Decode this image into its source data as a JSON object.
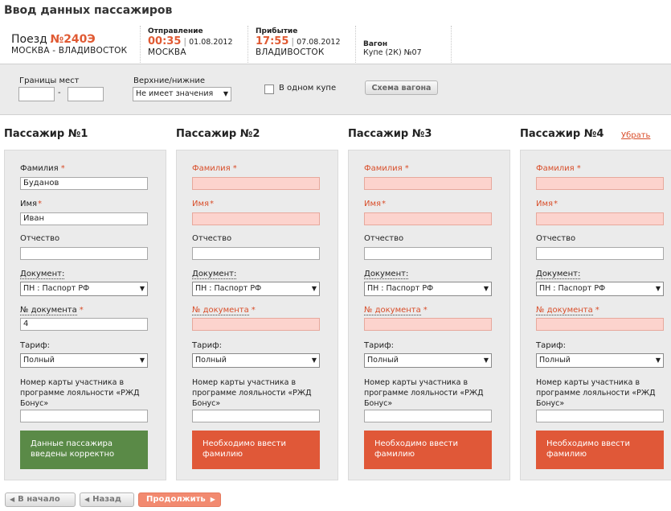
{
  "page": {
    "title": "Ввод данных пассажиров"
  },
  "train": {
    "label": "Поезд",
    "number": "№240Э",
    "route": "МОСКВА - ВЛАДИВОСТОК",
    "departure": {
      "heading": "Отправление",
      "time": "00:35",
      "date": "01.08.2012",
      "station": "МОСКВА"
    },
    "arrival": {
      "heading": "Прибытие",
      "time": "17:55",
      "date": "07.08.2012",
      "station": "ВЛАДИВОСТОК"
    },
    "car": {
      "heading": "Вагон",
      "value": "Купе (2К) №07"
    }
  },
  "filters": {
    "seat_range_label": "Границы мест",
    "seat_from": "",
    "seat_to": "",
    "berth_label": "Верхние/нижние",
    "berth_value": "Не имеет значения",
    "same_compartment_label": "В одном купе",
    "same_compartment_checked": false,
    "scheme_button": "Схема вагона"
  },
  "labels": {
    "last_name": "Фамилия",
    "first_name": "Имя",
    "patronymic": "Отчество",
    "document": "Документ:",
    "doc_number": "№ документа",
    "tariff": "Тариф:",
    "loyalty": "Номер карты участника в программе лояльности «РЖД Бонус»",
    "required_mark": "*"
  },
  "passengers": [
    {
      "title": "Пассажир №1",
      "last_name": "Буданов",
      "first_name": "Иван",
      "patronymic": "",
      "document": "ПН : Паспорт РФ",
      "doc_number": "4",
      "tariff": "Полный",
      "loyalty_card": "",
      "status": "Данные пассажира введены корректно",
      "status_type": "ok"
    },
    {
      "title": "Пассажир №2",
      "last_name": "",
      "first_name": "",
      "patronymic": "",
      "document": "ПН : Паспорт РФ",
      "doc_number": "",
      "tariff": "Полный",
      "loyalty_card": "",
      "status": "Необходимо ввести фамилию",
      "status_type": "error"
    },
    {
      "title": "Пассажир №3",
      "last_name": "",
      "first_name": "",
      "patronymic": "",
      "document": "ПН : Паспорт РФ",
      "doc_number": "",
      "tariff": "Полный",
      "loyalty_card": "",
      "status": "Необходимо ввести фамилию",
      "status_type": "error"
    },
    {
      "title": "Пассажир №4",
      "remove_label": "Убрать",
      "last_name": "",
      "first_name": "",
      "patronymic": "",
      "document": "ПН : Паспорт РФ",
      "doc_number": "",
      "tariff": "Полный",
      "loyalty_card": "",
      "status": "Необходимо ввести фамилию",
      "status_type": "error"
    }
  ],
  "nav": {
    "start": "В начало",
    "back": "Назад",
    "continue": "Продолжить"
  },
  "colors": {
    "accent": "#e05a33",
    "ok": "#5a8a47",
    "error": "#e05838",
    "error_field": "#fcd3cd"
  },
  "icons": {
    "start": "triangle-left",
    "back": "triangle-left",
    "continue": "triangle-right"
  }
}
